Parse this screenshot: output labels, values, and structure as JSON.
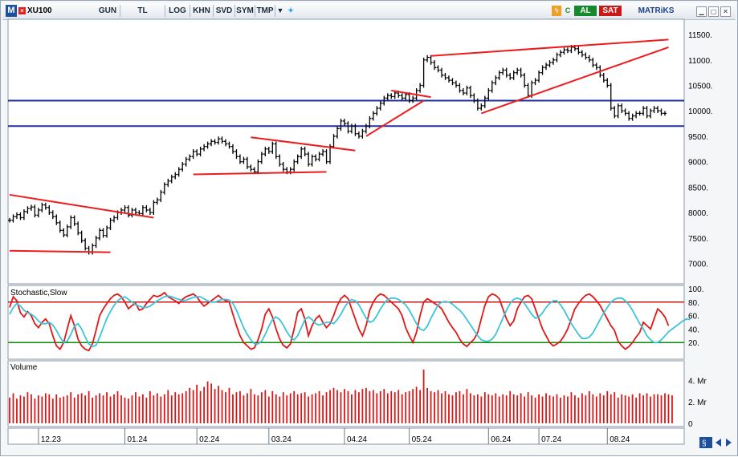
{
  "toolbar": {
    "logo": "M",
    "symbol": "XU100",
    "buttons": [
      "GUN",
      "TL",
      "LOG",
      "KHN",
      "SVD",
      "SYM",
      "TMP"
    ],
    "buy_label": "AL",
    "sell_label": "SAT",
    "brand": "MATRiKS",
    "window_controls": [
      "minimize",
      "restore",
      "close"
    ],
    "icons": [
      "dropdown-arrow-icon",
      "twitter-bird-icon",
      "lightning-icon",
      "refresh-icon"
    ],
    "accent_colors": {
      "buy": "#168a2a",
      "sell": "#c81818",
      "logo": "#1c4f9c"
    }
  },
  "chart_data": [
    {
      "type": "candlestick",
      "symbol": "XU100",
      "title": "",
      "ylim": [
        6600,
        11800
      ],
      "yticks": [
        11500,
        11000,
        10500,
        10000,
        9500,
        9000,
        8500,
        8000,
        7500,
        7000
      ],
      "ytick_labels": [
        "11500.",
        "11000.",
        "10500.",
        "10000.",
        "9500.",
        "9000.",
        "8500.",
        "8000.",
        "7500.",
        "7000."
      ],
      "x_month_labels": [
        "12.23",
        "01.24",
        "02.24",
        "03.24",
        "04.24",
        "05.24",
        "06.24",
        "07.24",
        "08.24"
      ],
      "x_month_start_index": [
        8,
        32,
        52,
        72,
        93,
        111,
        133,
        147,
        166
      ],
      "bar_count": 183,
      "closes": [
        7850,
        7920,
        7960,
        7900,
        8020,
        8080,
        8110,
        7950,
        8050,
        8150,
        8100,
        8000,
        7920,
        7800,
        7650,
        7560,
        7720,
        7900,
        7780,
        7600,
        7450,
        7300,
        7220,
        7350,
        7500,
        7650,
        7550,
        7700,
        7850,
        7900,
        8000,
        8050,
        8100,
        7950,
        8050,
        8000,
        7980,
        8100,
        8050,
        8000,
        8200,
        8250,
        8400,
        8550,
        8620,
        8700,
        8750,
        8850,
        8950,
        9050,
        9100,
        9200,
        9150,
        9250,
        9300,
        9350,
        9400,
        9380,
        9450,
        9400,
        9350,
        9300,
        9200,
        9100,
        9000,
        9050,
        8900,
        8850,
        8800,
        9000,
        9150,
        9250,
        9200,
        9350,
        9100,
        8950,
        8850,
        8800,
        8850,
        9000,
        9100,
        9250,
        9150,
        8950,
        9100,
        9050,
        9150,
        9200,
        9000,
        9300,
        9500,
        9650,
        9800,
        9750,
        9600,
        9700,
        9550,
        9500,
        9600,
        9700,
        9850,
        9950,
        10050,
        10150,
        10250,
        10300,
        10280,
        10350,
        10300,
        10250,
        10320,
        10200,
        10250,
        10400,
        10500,
        11000,
        11050,
        10950,
        10850,
        10800,
        10700,
        10650,
        10600,
        10550,
        10500,
        10400,
        10350,
        10450,
        10300,
        10200,
        10050,
        10100,
        10250,
        10400,
        10550,
        10650,
        10750,
        10800,
        10700,
        10650,
        10750,
        10800,
        10700,
        10500,
        10300,
        10550,
        10600,
        10750,
        10850,
        10900,
        10950,
        11000,
        11100,
        11150,
        11200,
        11180,
        11250,
        11220,
        11150,
        11100,
        11050,
        11000,
        10900,
        10850,
        10700,
        10600,
        10500,
        10050,
        9900,
        10100,
        10000,
        9950,
        9850,
        9900,
        9950,
        9950,
        10050,
        9900,
        10000,
        10050,
        10000,
        9950,
        9950
      ],
      "trendlines": [
        {
          "color": "#ee1c1c",
          "from": [
            0,
            8350
          ],
          "to": [
            40,
            7900
          ]
        },
        {
          "color": "#ee1c1c",
          "from": [
            0,
            7250
          ],
          "to": [
            28,
            7220
          ]
        },
        {
          "color": "#ee1c1c",
          "from": [
            67,
            9480
          ],
          "to": [
            96,
            9220
          ]
        },
        {
          "color": "#ee1c1c",
          "from": [
            51,
            8750
          ],
          "to": [
            88,
            8800
          ]
        },
        {
          "color": "#ee1c1c",
          "from": [
            99,
            9500
          ],
          "to": [
            115,
            10200
          ]
        },
        {
          "color": "#ee1c1c",
          "from": [
            106,
            10400
          ],
          "to": [
            117,
            10270
          ]
        },
        {
          "color": "#ee1c1c",
          "from": [
            117,
            11080
          ],
          "to": [
            183,
            11400
          ]
        },
        {
          "color": "#ee1c1c",
          "from": [
            131,
            9950
          ],
          "to": [
            183,
            11250
          ]
        }
      ],
      "hlines": [
        {
          "color": "#1f2fa0",
          "value": 10200
        },
        {
          "color": "#1f2fa0",
          "value": 9700
        }
      ]
    },
    {
      "type": "line",
      "title": "Stochastic,Slow",
      "ylim": [
        0,
        100
      ],
      "yticks": [
        100,
        80,
        60,
        40,
        20
      ],
      "ytick_labels": [
        "100.",
        "80.",
        "60.",
        "40.",
        "20."
      ],
      "levels": [
        {
          "value": 80,
          "color": "#c81818"
        },
        {
          "value": 20,
          "color": "#0c8a0c"
        }
      ],
      "series": [
        {
          "color": "#e01818",
          "values": [
            72,
            88,
            82,
            64,
            58,
            66,
            60,
            48,
            42,
            50,
            55,
            48,
            30,
            15,
            10,
            20,
            40,
            60,
            45,
            25,
            15,
            10,
            8,
            18,
            38,
            60,
            70,
            78,
            85,
            90,
            92,
            88,
            80,
            70,
            75,
            78,
            68,
            70,
            78,
            84,
            90,
            88,
            90,
            94,
            88,
            85,
            82,
            78,
            84,
            88,
            90,
            92,
            88,
            80,
            74,
            78,
            82,
            86,
            90,
            85,
            82,
            80,
            62,
            45,
            30,
            20,
            15,
            10,
            12,
            24,
            40,
            62,
            70,
            58,
            40,
            25,
            16,
            12,
            18,
            40,
            65,
            70,
            55,
            30,
            45,
            55,
            60,
            50,
            42,
            48,
            60,
            75,
            85,
            90,
            85,
            70,
            55,
            40,
            30,
            45,
            68,
            80,
            88,
            92,
            90,
            85,
            80,
            75,
            70,
            60,
            42,
            30,
            20,
            35,
            60,
            80,
            85,
            82,
            78,
            75,
            70,
            60,
            50,
            42,
            35,
            25,
            18,
            14,
            20,
            25,
            35,
            55,
            75,
            88,
            92,
            90,
            85,
            70,
            55,
            45,
            52,
            70,
            80,
            88,
            90,
            85,
            70,
            55,
            40,
            30,
            20,
            15,
            18,
            22,
            30,
            40,
            55,
            70,
            78,
            85,
            90,
            92,
            88,
            82,
            75,
            65,
            55,
            45,
            38,
            22,
            15,
            10,
            14,
            20,
            28,
            35,
            50,
            45,
            40,
            55,
            70,
            65,
            58,
            45
          ]
        },
        {
          "color": "#3cc4dc",
          "values": [
            62,
            72,
            78,
            74,
            68,
            64,
            62,
            58,
            52,
            48,
            48,
            50,
            46,
            38,
            28,
            20,
            22,
            32,
            44,
            48,
            40,
            28,
            18,
            14,
            16,
            28,
            42,
            56,
            66,
            75,
            82,
            86,
            88,
            84,
            80,
            76,
            74,
            72,
            72,
            74,
            78,
            82,
            85,
            88,
            89,
            88,
            86,
            84,
            82,
            83,
            85,
            87,
            88,
            88,
            85,
            82,
            80,
            80,
            82,
            84,
            84,
            83,
            78,
            68,
            55,
            42,
            32,
            24,
            18,
            18,
            22,
            32,
            44,
            54,
            58,
            54,
            46,
            36,
            28,
            24,
            30,
            42,
            54,
            58,
            54,
            48,
            46,
            48,
            50,
            50,
            48,
            54,
            62,
            72,
            80,
            84,
            82,
            76,
            66,
            56,
            50,
            52,
            60,
            70,
            78,
            84,
            86,
            86,
            84,
            80,
            76,
            68,
            58,
            48,
            40,
            38,
            44,
            56,
            66,
            76,
            80,
            81,
            80,
            77,
            72,
            68,
            62,
            54,
            46,
            38,
            30,
            24,
            22,
            22,
            25,
            32,
            44,
            56,
            68,
            78,
            84,
            86,
            84,
            78,
            70,
            62,
            56,
            58,
            64,
            72,
            78,
            82,
            82,
            76,
            68,
            58,
            48,
            40,
            32,
            26,
            26,
            28,
            34,
            44,
            54,
            64,
            72,
            80,
            84,
            86,
            86,
            82,
            76,
            68,
            58,
            48,
            40,
            30,
            24,
            20,
            20,
            24,
            30,
            36,
            40,
            44,
            48,
            52,
            55,
            54
          ]
        }
      ]
    },
    {
      "type": "bar",
      "title": "Volume",
      "ylim": [
        0,
        5.6
      ],
      "yticks": [
        4,
        2,
        0
      ],
      "ytick_labels": [
        "4. Mr",
        "2. Mr",
        "0"
      ],
      "color": "#d81818",
      "values": [
        2.4,
        2.8,
        2.3,
        2.6,
        2.5,
        2.9,
        2.7,
        2.3,
        2.6,
        2.5,
        2.8,
        2.7,
        2.3,
        2.7,
        2.4,
        2.5,
        2.6,
        2.9,
        2.4,
        2.7,
        2.8,
        2.6,
        3.0,
        2.4,
        2.6,
        2.8,
        2.6,
        2.9,
        2.5,
        2.7,
        3.0,
        2.6,
        2.4,
        2.3,
        2.6,
        2.9,
        2.5,
        2.7,
        2.4,
        3.0,
        2.6,
        2.8,
        2.5,
        2.7,
        3.1,
        2.6,
        2.9,
        2.7,
        2.8,
        3.0,
        3.3,
        3.1,
        3.6,
        3.0,
        3.4,
        3.9,
        3.7,
        3.2,
        3.5,
        3.1,
        2.9,
        3.3,
        2.7,
        2.9,
        3.0,
        2.6,
        2.8,
        3.2,
        2.7,
        2.6,
        2.9,
        3.1,
        2.5,
        3.0,
        2.7,
        2.5,
        2.9,
        2.6,
        2.8,
        3.0,
        2.7,
        2.8,
        2.9,
        2.5,
        2.7,
        2.8,
        3.0,
        2.6,
        2.9,
        3.1,
        3.3,
        3.1,
        2.9,
        3.2,
        3.0,
        2.7,
        3.1,
        2.9,
        3.2,
        3.3,
        3.0,
        3.1,
        2.8,
        3.0,
        3.2,
        2.8,
        3.0,
        2.9,
        3.1,
        2.7,
        2.9,
        3.0,
        3.2,
        3.4,
        3.1,
        5.0,
        3.3,
        3.0,
        2.9,
        3.1,
        2.8,
        3.0,
        2.7,
        2.6,
        2.9,
        3.0,
        2.7,
        3.2,
        2.8,
        2.6,
        2.7,
        2.5,
        2.9,
        2.7,
        2.6,
        2.8,
        2.5,
        2.7,
        2.6,
        3.0,
        2.7,
        2.6,
        2.8,
        2.5,
        2.9,
        2.6,
        2.4,
        2.7,
        2.5,
        2.8,
        2.6,
        2.5,
        2.7,
        2.4,
        2.6,
        2.5,
        2.9,
        2.6,
        2.4,
        2.8,
        2.6,
        3.0,
        2.7,
        2.5,
        2.8,
        2.6,
        3.0,
        2.7,
        2.9,
        2.4,
        2.7,
        2.6,
        2.5,
        2.7,
        2.4,
        2.8,
        2.6,
        2.8,
        2.5,
        2.7,
        2.7,
        2.6,
        2.8,
        2.7,
        2.6
      ]
    }
  ]
}
